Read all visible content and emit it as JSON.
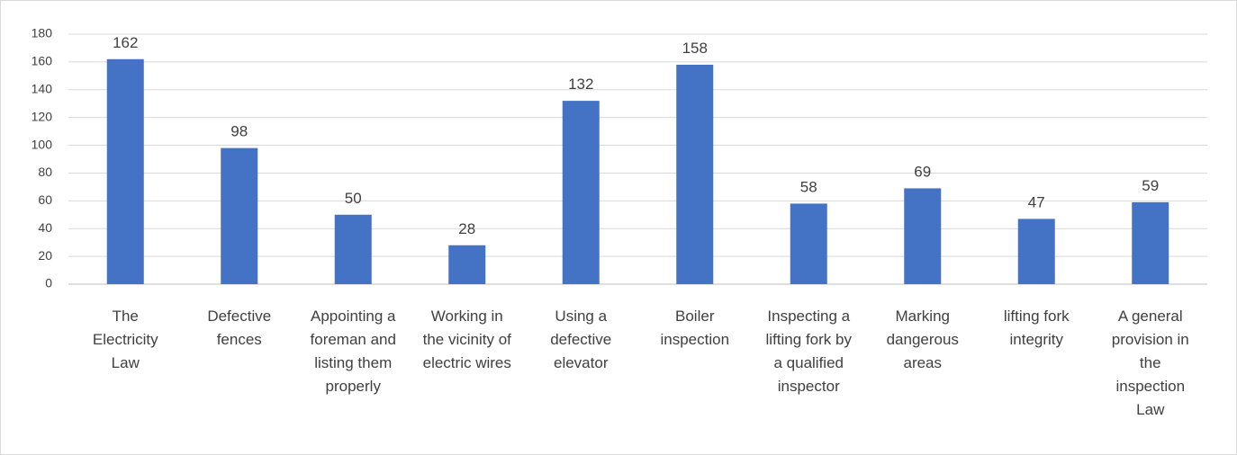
{
  "chart_data": {
    "type": "bar",
    "categories": [
      "The Electricity Law",
      "Defective fences",
      "Appointing a foreman and listing them properly",
      "Working in the vicinity of electric wires",
      "Using a defective elevator",
      "Boiler inspection",
      "Inspecting a lifting fork by a qualified inspector",
      "Marking dangerous areas",
      "lifting fork integrity",
      "A general provision in the inspection Law"
    ],
    "values": [
      162,
      98,
      50,
      28,
      132,
      158,
      58,
      69,
      47,
      59
    ],
    "color": "#4472c4",
    "ylim": [
      0,
      180
    ],
    "yticks": [
      0,
      20,
      40,
      60,
      80,
      100,
      120,
      140,
      160,
      180
    ],
    "grid": true
  }
}
